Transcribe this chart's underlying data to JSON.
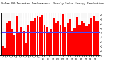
{
  "title": "Solar PV/Inverter Performance  Weekly Solar Energy Production",
  "title_fontsize": 2.8,
  "bar_color": "#FF0000",
  "avg_line_color": "#4444FF",
  "avg_line_value": 0.52,
  "background_color": "#FFFFFF",
  "grid_color": "#AAAAAA",
  "ylim": [
    0,
    0.95
  ],
  "yticks_right": [
    0.0,
    0.1,
    0.2,
    0.3,
    0.4,
    0.5,
    0.6,
    0.7,
    0.8,
    0.9
  ],
  "ytick_labels_right": [
    "0",
    "1",
    "2",
    "3",
    "4",
    "5",
    "6",
    "7",
    "8",
    "9"
  ],
  "values": [
    0.2,
    0.17,
    0.72,
    0.78,
    0.58,
    0.44,
    0.88,
    0.52,
    0.63,
    0.55,
    0.28,
    0.68,
    0.78,
    0.76,
    0.82,
    0.88,
    0.85,
    0.9,
    0.68,
    0.63,
    0.52,
    0.58,
    0.83,
    0.73,
    0.78,
    0.68,
    0.92,
    0.63,
    0.73,
    0.8,
    0.56,
    0.6,
    0.86,
    0.68,
    0.78,
    0.73,
    0.66,
    0.7,
    0.83,
    0.88,
    0.76,
    0.78
  ],
  "bar_width": 0.85,
  "tick_fontsize": 2.0,
  "xtick_fontsize": 1.8,
  "xlabels": [
    "1",
    "",
    "2",
    "",
    "3",
    "",
    "4",
    "",
    "5",
    "",
    "6",
    "",
    "7",
    "",
    "8",
    "",
    "9",
    "",
    "10",
    "",
    "11",
    "",
    "12",
    "",
    "13",
    "",
    "14",
    "",
    "15",
    "",
    "16",
    "",
    "17",
    "",
    "18",
    "",
    "19",
    "",
    "20",
    "",
    "21",
    ""
  ]
}
